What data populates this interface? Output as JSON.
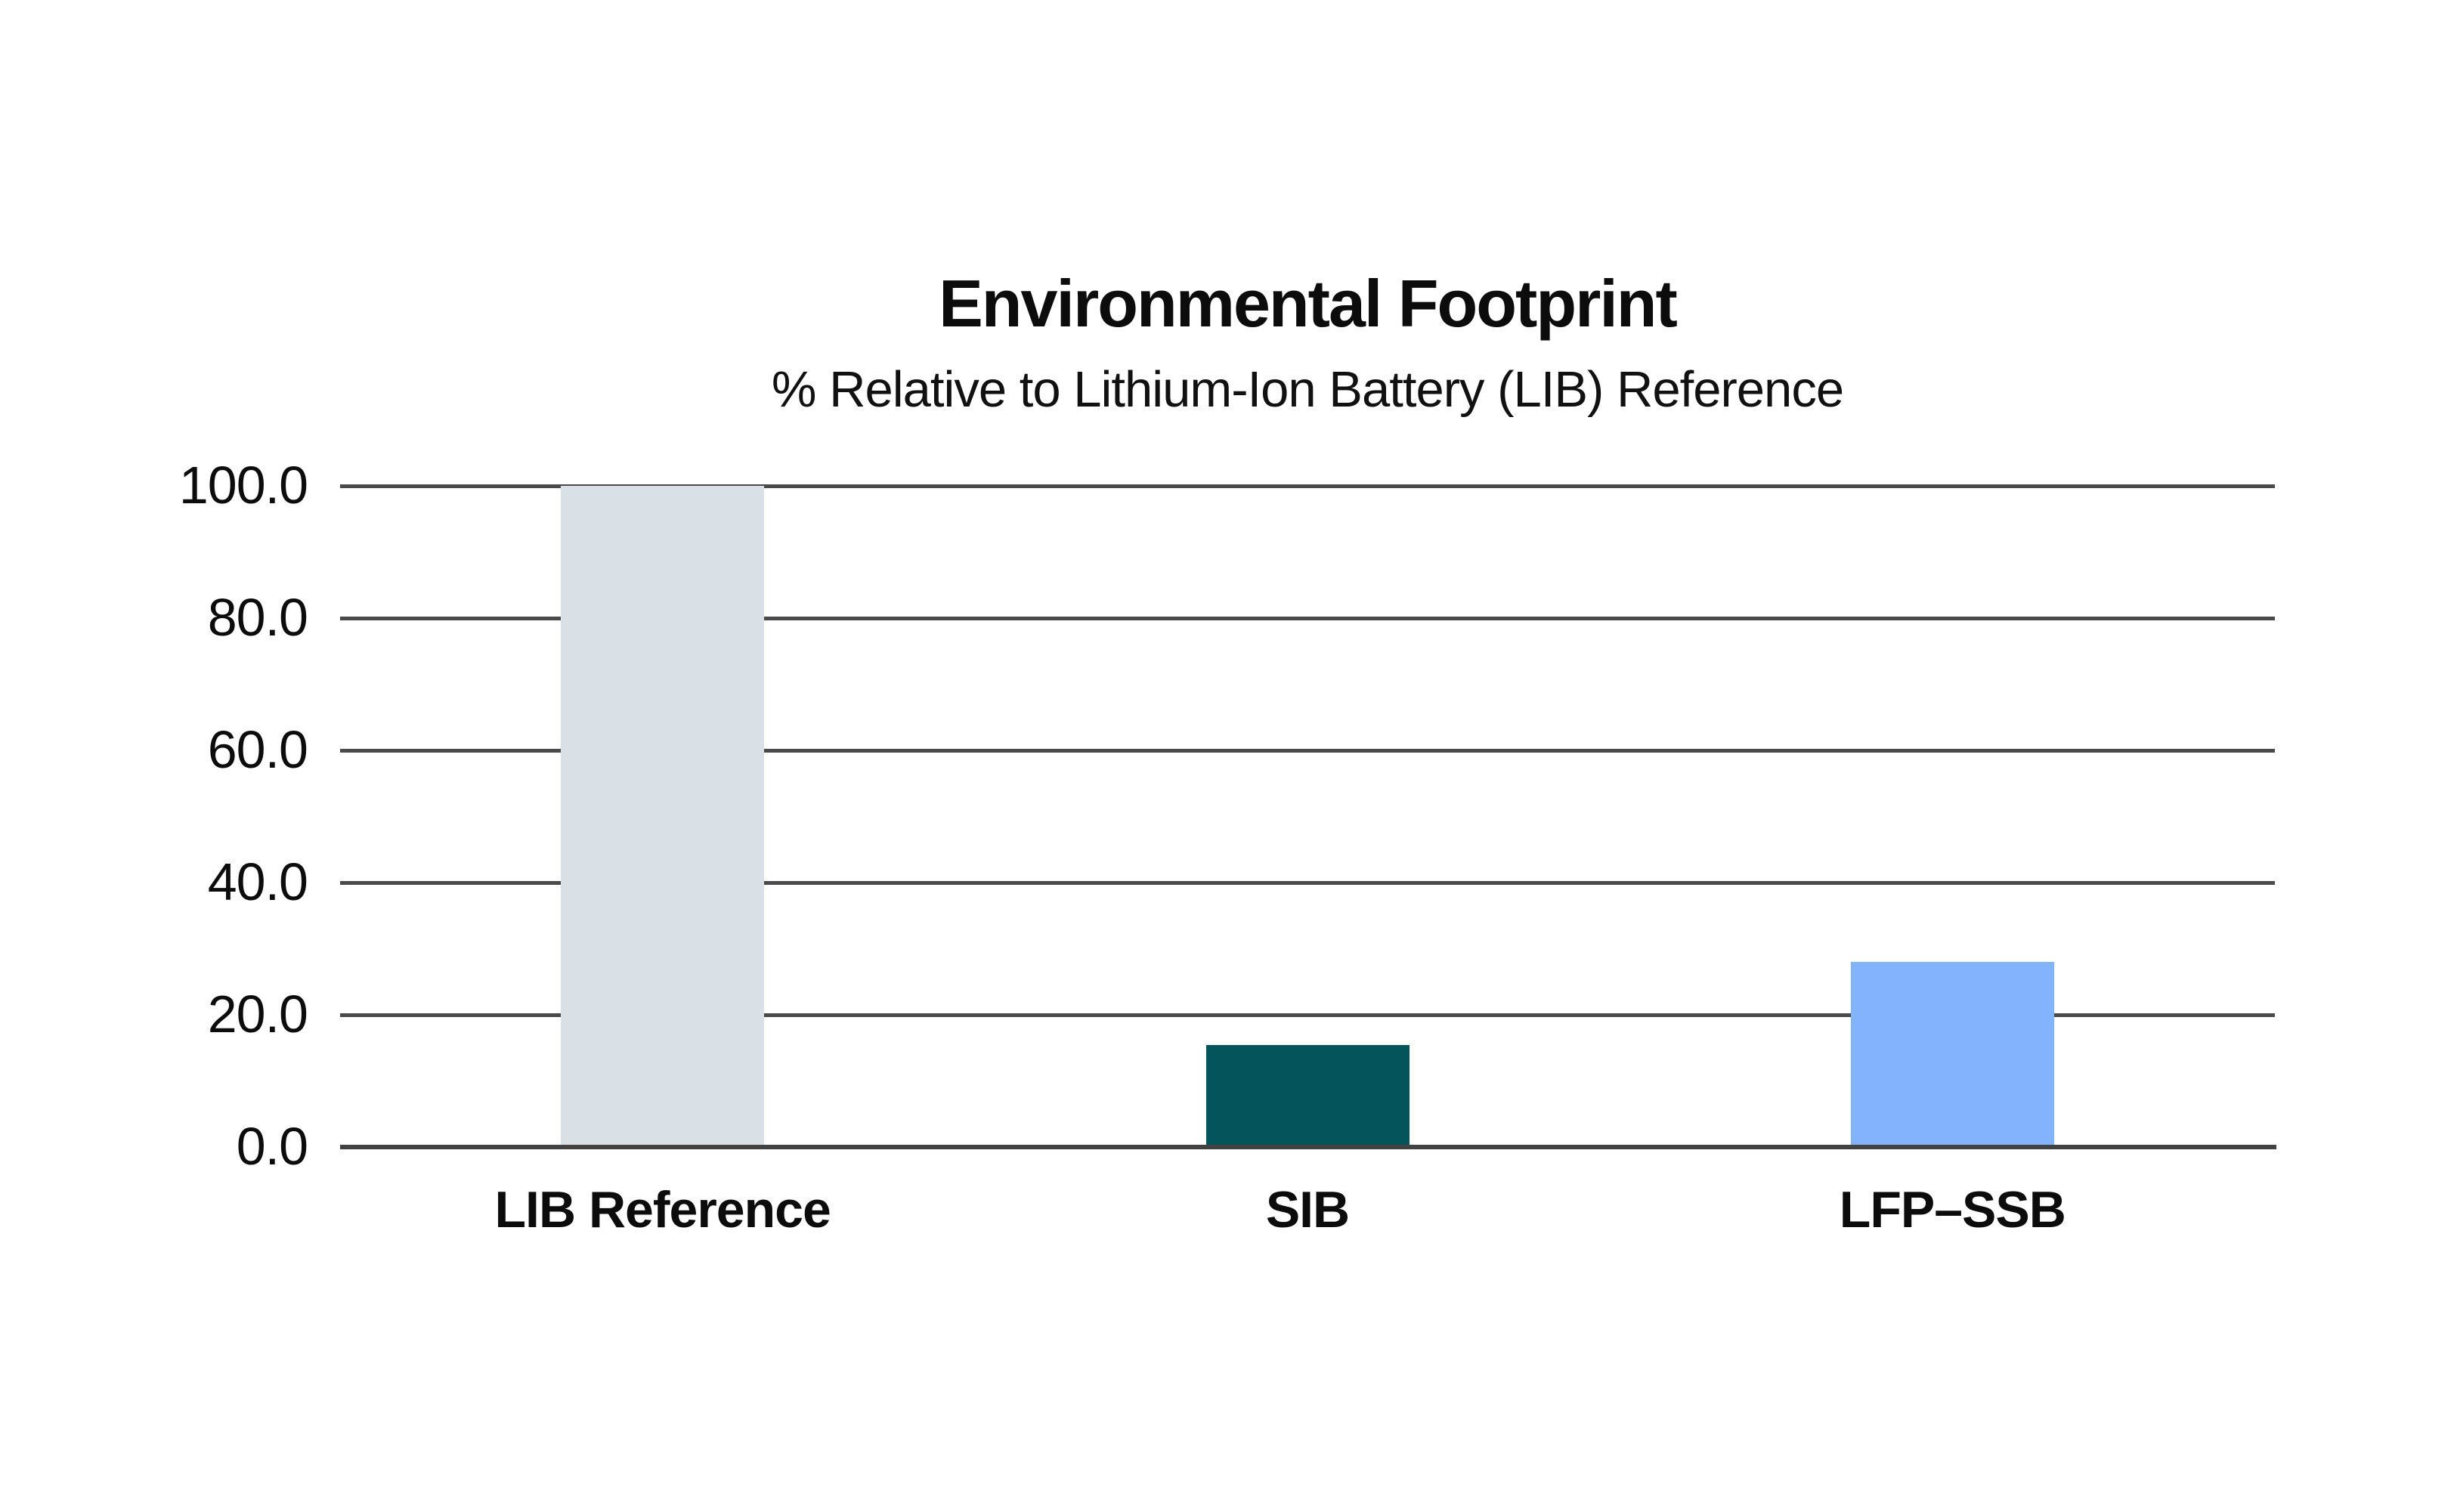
{
  "page": {
    "background": "#ffffff",
    "text_color": "#0c0c0c"
  },
  "chart_data": {
    "type": "bar",
    "title": "Environmental Footprint",
    "subtitle": "% Relative to Lithium-Ion Battery (LIB) Reference",
    "categories": [
      "LIB Reference",
      "SIB",
      "LFP–SSB"
    ],
    "values": [
      100.0,
      15.4,
      28.0
    ],
    "bar_colors": [
      "#dae1e6",
      "#04545c",
      "#83b3fc"
    ],
    "yticks": [
      0.0,
      20.0,
      40.0,
      60.0,
      80.0,
      100.0
    ],
    "ytick_labels": [
      "0.0",
      "20.0",
      "40.0",
      "60.0",
      "80.0",
      "100.0"
    ],
    "ylim": [
      0,
      100
    ],
    "xlabel": "",
    "ylabel": "",
    "grid": "horizontal",
    "gridline_color": "#4a4a4a",
    "baseline_color": "#424242",
    "legend": "none"
  }
}
